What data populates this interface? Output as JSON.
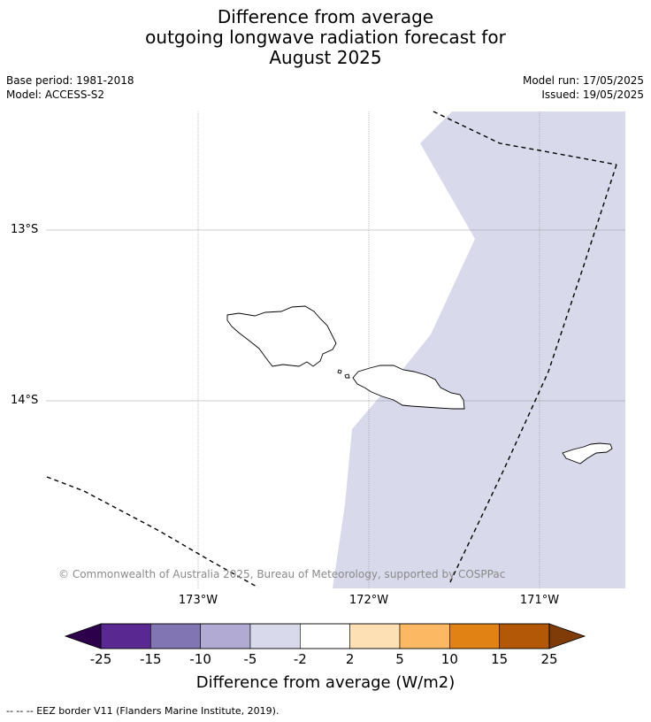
{
  "header": {
    "title_line1": "Difference from average",
    "title_line2": "outgoing longwave radiation forecast for",
    "title_line3": "August 2025",
    "base_period": "Base period: 1981-2018",
    "model": "Model: ACCESS-S2",
    "model_run": "Model run: 17/05/2025",
    "issued": "Issued: 19/05/2025"
  },
  "map": {
    "lat_labels": [
      "13°S",
      "14°S"
    ],
    "lon_labels": [
      "173°W",
      "172°W",
      "171°W"
    ],
    "anomaly_class_shown": "-5 to -2",
    "anomaly_color": "#d8d9ea",
    "copyright": "© Commonwealth of Australia 2025, Bureau of Meteorology, supported by COSPPac"
  },
  "colorbar": {
    "ticks": [
      "-25",
      "-15",
      "-10",
      "-5",
      "-2",
      "2",
      "5",
      "10",
      "15",
      "25"
    ],
    "colors": [
      "#5a2891",
      "#8275b3",
      "#b1aad2",
      "#d8d9ea",
      "#ffffff",
      "#fde0b3",
      "#fdb863",
      "#e08214",
      "#b35806"
    ],
    "under_color": "#2d004b",
    "over_color": "#7f3b08",
    "label": "Difference from average (W/m2)"
  },
  "footnote": "--  --  -- EEZ border V11 (Flanders Marine Institute, 2019)."
}
